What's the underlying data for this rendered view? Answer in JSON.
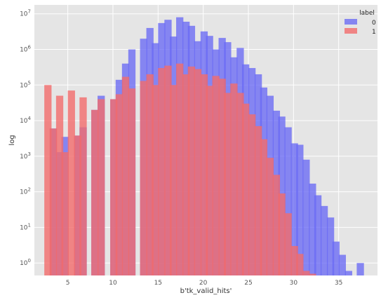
{
  "chart_data": {
    "type": "bar",
    "title": "",
    "xlabel": "b'tk_valid_hits'",
    "ylabel": "log",
    "x_scale": "linear",
    "y_scale": "log",
    "xlim": [
      1.3,
      39.3
    ],
    "ylim_exponent": [
      -0.35,
      7.25
    ],
    "xticks": [
      5,
      10,
      15,
      20,
      25,
      30,
      35
    ],
    "ytick_exponents": [
      0,
      1,
      2,
      3,
      4,
      5,
      6,
      7
    ],
    "bin_width": 0.8,
    "grid": true,
    "legend": {
      "title": "label",
      "position": "top-right"
    },
    "colors": {
      "background": "#e5e5e5",
      "grid": "#ffffff",
      "series_0": "#6a6af5",
      "series_1": "#f26c6c"
    },
    "series": [
      {
        "name": "0",
        "x": [
          3.4,
          4.1,
          4.7,
          5.4,
          6.1,
          6.7,
          8.0,
          8.7,
          10.1,
          10.7,
          11.4,
          12.1,
          13.4,
          14.1,
          14.7,
          15.4,
          16.1,
          16.7,
          17.4,
          18.1,
          18.7,
          19.4,
          20.1,
          20.7,
          21.4,
          22.1,
          22.7,
          23.4,
          24.1,
          24.7,
          25.4,
          26.1,
          26.7,
          27.4,
          28.1,
          28.7,
          29.4,
          30.1,
          30.7,
          31.4,
          32.1,
          32.7,
          33.4,
          34.1,
          34.7,
          35.4,
          36.1,
          37.4
        ],
        "values": [
          6000,
          1300,
          3500,
          0,
          3800,
          6500,
          20000,
          50000,
          40000,
          140000,
          400000,
          1000000,
          2000000,
          4000000,
          1500000,
          5500000,
          6800000,
          2300000,
          8000000,
          6000000,
          4600000,
          1700000,
          3200000,
          2400000,
          1000000,
          2100000,
          1600000,
          600000,
          1100000,
          380000,
          300000,
          200000,
          85000,
          50000,
          19000,
          13000,
          6500,
          2300,
          2100,
          800,
          170,
          80,
          40,
          19,
          4,
          1.7,
          0.6,
          1.0
        ]
      },
      {
        "name": "1",
        "x": [
          2.8,
          3.4,
          4.1,
          4.7,
          5.4,
          6.1,
          6.7,
          8.0,
          8.7,
          10.1,
          10.7,
          11.4,
          12.1,
          13.4,
          14.1,
          14.7,
          15.4,
          16.1,
          16.7,
          17.4,
          18.1,
          18.7,
          19.4,
          20.1,
          20.7,
          21.4,
          22.1,
          22.7,
          23.4,
          24.1,
          24.7,
          25.4,
          26.1,
          26.7,
          27.4,
          28.1,
          28.7,
          29.4,
          30.1,
          30.7,
          31.4,
          32.1,
          32.7
        ],
        "values": [
          100000,
          6000,
          50000,
          1300,
          70000,
          3800,
          45000,
          20000,
          40000,
          40000,
          55000,
          170000,
          80000,
          130000,
          200000,
          100000,
          300000,
          350000,
          100000,
          400000,
          200000,
          330000,
          280000,
          200000,
          95000,
          180000,
          150000,
          60000,
          110000,
          60000,
          30000,
          15000,
          7000,
          3000,
          900,
          300,
          90,
          25,
          3,
          1.8,
          0.6,
          0.5,
          0.0
        ]
      }
    ]
  }
}
